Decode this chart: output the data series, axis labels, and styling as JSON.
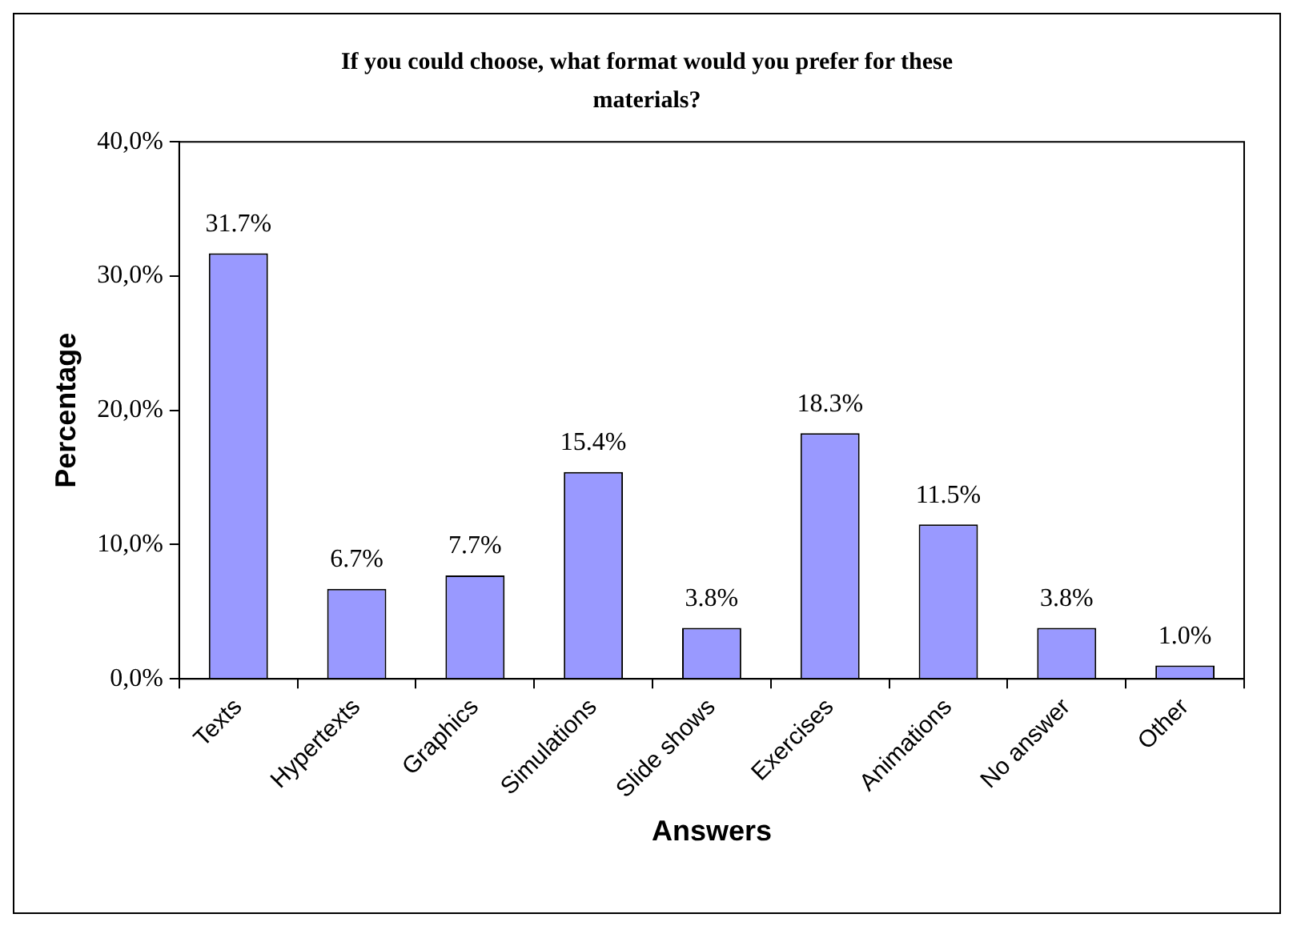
{
  "chart_data": {
    "type": "bar",
    "title": "If you could choose, what format would you prefer for these materials?",
    "xlabel": "Answers",
    "ylabel": "Percentage",
    "categories": [
      "Texts",
      "Hypertexts",
      "Graphics",
      "Simulations",
      "Slide shows",
      "Exercises",
      "Animations",
      "No answer",
      "Other"
    ],
    "values": [
      31.7,
      6.7,
      7.7,
      15.4,
      3.8,
      18.3,
      11.5,
      3.8,
      1.0
    ],
    "value_labels": [
      "31.7%",
      "6.7%",
      "7.7%",
      "15.4%",
      "3.8%",
      "18.3%",
      "11.5%",
      "3.8%",
      "1.0%"
    ],
    "color": "#9999ff",
    "ylim": [
      0,
      40
    ],
    "yticks": [
      {
        "value": 0,
        "label": "0,0%"
      },
      {
        "value": 10,
        "label": "10,0%"
      },
      {
        "value": 20,
        "label": "20,0%"
      },
      {
        "value": 30,
        "label": "30,0%"
      },
      {
        "value": 40,
        "label": "40,0%"
      }
    ],
    "grid": false,
    "legend": false
  }
}
